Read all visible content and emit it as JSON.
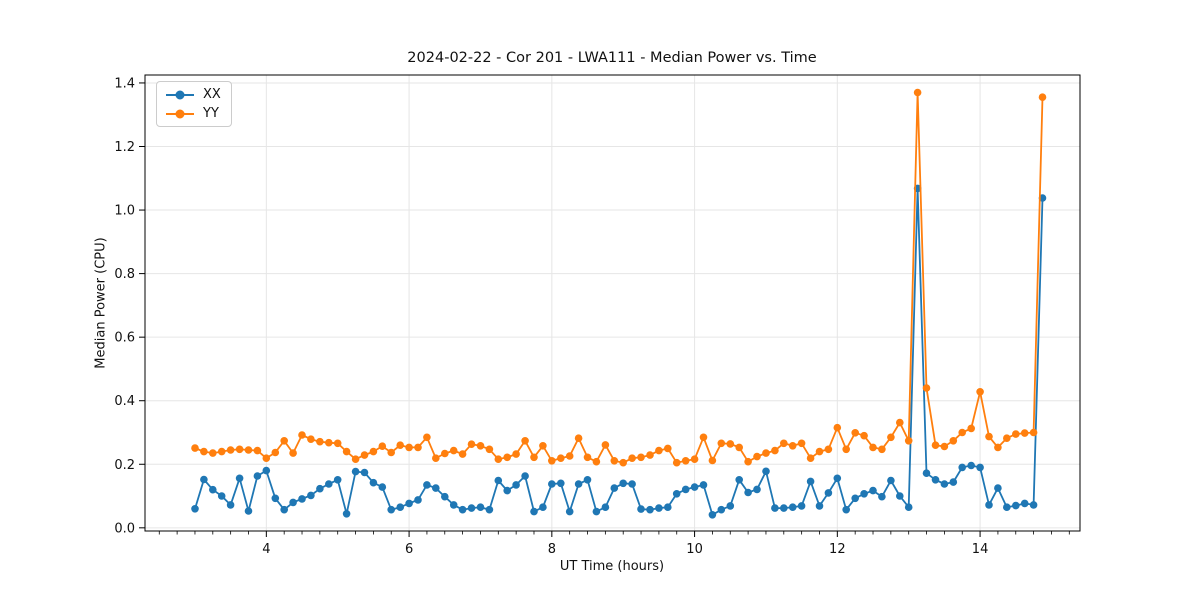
{
  "figure": {
    "title": "2024-02-22 - Cor 201 - LWA111 - Median Power vs. Time",
    "xlabel": "UT Time (hours)",
    "ylabel": "Median Power (CPU)"
  },
  "legend": {
    "position": "upper left",
    "items": [
      {
        "label": "XX",
        "color": "#1f77b4"
      },
      {
        "label": "YY",
        "color": "#ff7f0e"
      }
    ]
  },
  "chart_data": {
    "type": "line",
    "title": "2024-02-22 - Cor 201 - LWA111 - Median Power vs. Time",
    "xlabel": "UT Time (hours)",
    "ylabel": "Median Power (CPU)",
    "grid": true,
    "legend_position": "upper left",
    "marker": "o",
    "xlim": [
      2.3,
      15.4
    ],
    "ylim": [
      -0.01,
      1.425
    ],
    "xticks": [
      4,
      6,
      8,
      10,
      12,
      14
    ],
    "yticks": [
      "0.0",
      "0.2",
      "0.4",
      "0.6",
      "0.8",
      "1.0",
      "1.2",
      "1.4"
    ],
    "ytick_values": [
      0.0,
      0.2,
      0.4,
      0.6,
      0.8,
      1.0,
      1.2,
      1.4
    ],
    "x_minor_step": 0.25,
    "x": [
      3.0,
      3.125,
      3.25,
      3.375,
      3.5,
      3.625,
      3.75,
      3.875,
      4.0,
      4.125,
      4.25,
      4.375,
      4.5,
      4.625,
      4.75,
      4.875,
      5.0,
      5.125,
      5.25,
      5.375,
      5.5,
      5.625,
      5.75,
      5.875,
      6.0,
      6.125,
      6.25,
      6.375,
      6.5,
      6.625,
      6.75,
      6.875,
      7.0,
      7.125,
      7.25,
      7.375,
      7.5,
      7.625,
      7.75,
      7.875,
      8.0,
      8.125,
      8.25,
      8.375,
      8.5,
      8.625,
      8.75,
      8.875,
      9.0,
      9.125,
      9.25,
      9.375,
      9.5,
      9.625,
      9.75,
      9.875,
      10.0,
      10.125,
      10.25,
      10.375,
      10.5,
      10.625,
      10.75,
      10.875,
      11.0,
      11.125,
      11.25,
      11.375,
      11.5,
      11.625,
      11.75,
      11.875,
      12.0,
      12.125,
      12.25,
      12.375,
      12.5,
      12.625,
      12.75,
      12.875,
      13.0,
      13.125,
      13.25,
      13.375,
      13.5,
      13.625,
      13.75,
      13.875,
      14.0,
      14.125,
      14.25,
      14.375,
      14.5,
      14.625,
      14.75,
      14.875
    ],
    "series": [
      {
        "name": "XX",
        "color": "#1f77b4",
        "values": [
          0.06,
          0.152,
          0.12,
          0.1,
          0.072,
          0.156,
          0.053,
          0.163,
          0.18,
          0.093,
          0.057,
          0.08,
          0.091,
          0.102,
          0.123,
          0.138,
          0.151,
          0.044,
          0.177,
          0.174,
          0.142,
          0.128,
          0.057,
          0.065,
          0.077,
          0.088,
          0.135,
          0.125,
          0.098,
          0.072,
          0.057,
          0.062,
          0.065,
          0.057,
          0.149,
          0.117,
          0.135,
          0.163,
          0.051,
          0.065,
          0.138,
          0.14,
          0.051,
          0.138,
          0.151,
          0.051,
          0.065,
          0.125,
          0.14,
          0.138,
          0.059,
          0.057,
          0.062,
          0.065,
          0.107,
          0.121,
          0.128,
          0.135,
          0.041,
          0.057,
          0.069,
          0.151,
          0.111,
          0.121,
          0.178,
          0.062,
          0.062,
          0.065,
          0.069,
          0.146,
          0.069,
          0.11,
          0.156,
          0.057,
          0.093,
          0.107,
          0.117,
          0.098,
          0.149,
          0.1,
          0.065,
          1.068,
          0.172,
          0.151,
          0.138,
          0.144,
          0.19,
          0.196,
          0.19,
          0.072,
          0.125,
          0.065,
          0.07,
          0.077,
          0.072,
          1.038
        ]
      },
      {
        "name": "YY",
        "color": "#ff7f0e",
        "values": [
          0.251,
          0.24,
          0.235,
          0.24,
          0.245,
          0.247,
          0.245,
          0.243,
          0.219,
          0.237,
          0.274,
          0.235,
          0.292,
          0.279,
          0.271,
          0.268,
          0.266,
          0.24,
          0.216,
          0.229,
          0.24,
          0.257,
          0.237,
          0.26,
          0.253,
          0.253,
          0.285,
          0.219,
          0.234,
          0.243,
          0.232,
          0.263,
          0.258,
          0.247,
          0.216,
          0.222,
          0.232,
          0.274,
          0.222,
          0.258,
          0.211,
          0.219,
          0.226,
          0.282,
          0.222,
          0.208,
          0.261,
          0.211,
          0.205,
          0.219,
          0.222,
          0.229,
          0.243,
          0.25,
          0.205,
          0.211,
          0.216,
          0.285,
          0.212,
          0.266,
          0.264,
          0.253,
          0.208,
          0.224,
          0.235,
          0.243,
          0.266,
          0.258,
          0.266,
          0.219,
          0.24,
          0.247,
          0.315,
          0.247,
          0.299,
          0.29,
          0.253,
          0.247,
          0.285,
          0.331,
          0.274,
          1.37,
          0.44,
          0.26,
          0.256,
          0.274,
          0.3,
          0.313,
          0.428,
          0.287,
          0.253,
          0.282,
          0.295,
          0.298,
          0.3,
          1.355
        ]
      }
    ],
    "colors": {
      "grid": "#e6e6e6",
      "spine": "#000000",
      "background": "#ffffff"
    }
  }
}
